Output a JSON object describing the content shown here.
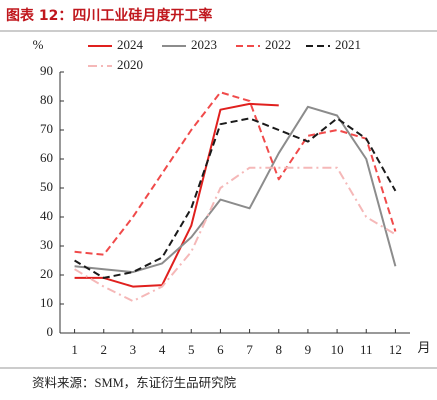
{
  "title": "图表 12：四川工业硅月度开工率",
  "source": "资料来源：SMM，东证衍生品研究院",
  "chart_data": {
    "type": "line",
    "ylabel": "%",
    "xlabel": "月",
    "x": [
      1,
      2,
      3,
      4,
      5,
      6,
      7,
      8,
      9,
      10,
      11,
      12
    ],
    "xlim": [
      0.5,
      12.5
    ],
    "xticks": [
      1,
      2,
      3,
      4,
      5,
      6,
      7,
      8,
      9,
      10,
      11,
      12
    ],
    "ylim": [
      0,
      90
    ],
    "yticks": [
      0,
      10,
      20,
      30,
      40,
      50,
      60,
      70,
      80,
      90
    ],
    "series": [
      {
        "name": "2024",
        "color": "#e0201e",
        "style": "solid",
        "values": [
          19,
          19,
          16,
          16.5,
          37,
          77,
          79,
          78.5,
          null,
          null,
          null,
          null
        ]
      },
      {
        "name": "2023",
        "color": "#8c8c8c",
        "style": "solid",
        "values": [
          23,
          22,
          21,
          24,
          33,
          46,
          43,
          62,
          78,
          75,
          60,
          23
        ]
      },
      {
        "name": "2022",
        "color": "#f04a4a",
        "style": "dashed",
        "values": [
          28,
          27,
          40,
          55,
          70,
          83,
          80,
          53,
          68,
          70,
          67,
          35
        ]
      },
      {
        "name": "2021",
        "color": "#1a1a1a",
        "style": "dashed",
        "values": [
          25,
          19,
          21,
          26,
          43,
          72,
          74,
          70,
          66,
          74,
          67,
          49
        ]
      },
      {
        "name": "2020",
        "color": "#f5b8b8",
        "style": "dashdot",
        "values": [
          22,
          16,
          11,
          16,
          28,
          50,
          57,
          57,
          57,
          57,
          40,
          34
        ]
      }
    ]
  }
}
